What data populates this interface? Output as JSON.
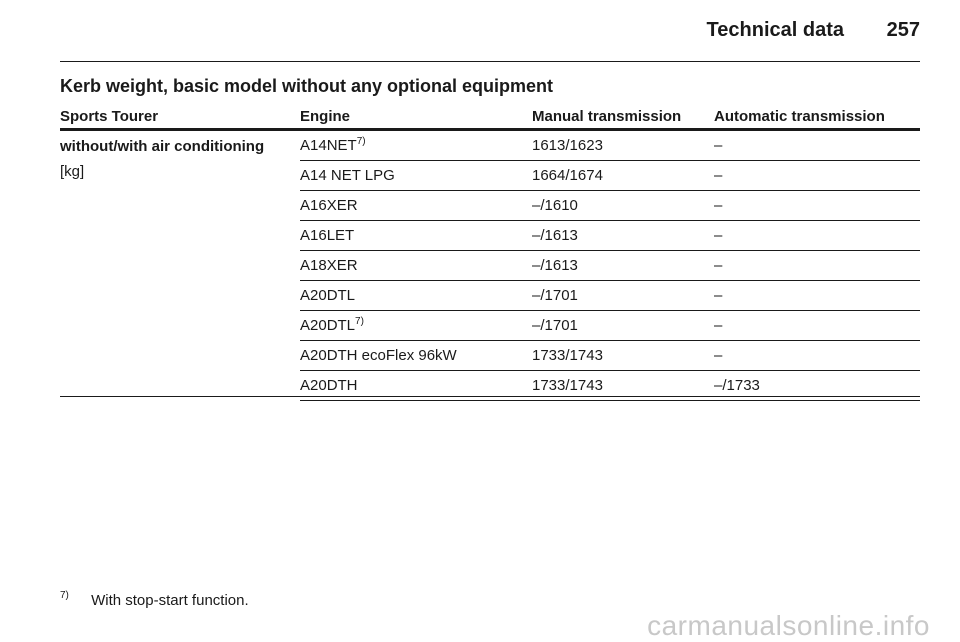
{
  "header": {
    "section_title": "Technical data",
    "page_number": "257"
  },
  "heading": "Kerb weight, basic model without any optional equipment",
  "table": {
    "columns": [
      "Sports Tourer",
      "Engine",
      "Manual transmission",
      "Automatic transmission"
    ],
    "row_group_label": "without/with air conditioning",
    "unit": "[kg]",
    "rows": [
      {
        "engine": "A14NET",
        "footnote": "7)",
        "manual": "1613/1623",
        "automatic": "–"
      },
      {
        "engine": "A14 NET LPG",
        "footnote": "",
        "manual": "1664/1674",
        "automatic": "–"
      },
      {
        "engine": "A16XER",
        "footnote": "",
        "manual": "–/1610",
        "automatic": "–"
      },
      {
        "engine": "A16LET",
        "footnote": "",
        "manual": "–/1613",
        "automatic": "–"
      },
      {
        "engine": "A18XER",
        "footnote": "",
        "manual": "–/1613",
        "automatic": "–"
      },
      {
        "engine": "A20DTL",
        "footnote": "",
        "manual": "–/1701",
        "automatic": "–"
      },
      {
        "engine": "A20DTL",
        "footnote": "7)",
        "manual": "–/1701",
        "automatic": "–"
      },
      {
        "engine": "A20DTH ecoFlex 96kW",
        "footnote": "",
        "manual": "1733/1743",
        "automatic": "–"
      },
      {
        "engine": "A20DTH",
        "footnote": "",
        "manual": "1733/1743",
        "automatic": "–/1733"
      }
    ]
  },
  "footnote": {
    "marker": "7)",
    "text": "With stop-start function."
  },
  "watermark": "carmanualsonline.info"
}
